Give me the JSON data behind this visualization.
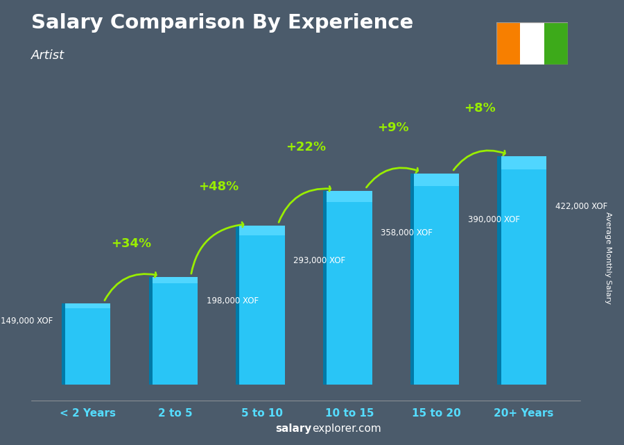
{
  "title": "Salary Comparison By Experience",
  "subtitle": "Artist",
  "categories": [
    "< 2 Years",
    "2 to 5",
    "5 to 10",
    "10 to 15",
    "15 to 20",
    "20+ Years"
  ],
  "values": [
    149000,
    198000,
    293000,
    358000,
    390000,
    422000
  ],
  "value_labels": [
    "149,000 XOF",
    "198,000 XOF",
    "293,000 XOF",
    "358,000 XOF",
    "390,000 XOF",
    "422,000 XOF"
  ],
  "pct_changes": [
    "+34%",
    "+48%",
    "+22%",
    "+9%",
    "+8%"
  ],
  "bar_color": "#29c5f6",
  "bar_color_light": "#55d8ff",
  "bar_color_dark": "#0099cc",
  "bar_shadow": "#007aa8",
  "bg_color": "#5a6a7a",
  "bg_overlay": "#4a5a6a",
  "title_color": "#FFFFFF",
  "subtitle_color": "#FFFFFF",
  "label_color": "#FFFFFF",
  "pct_color": "#99ee00",
  "cat_color": "#55ddff",
  "ylabel": "Average Monthly Salary",
  "footer_bold": "salary",
  "footer_normal": "explorer.com",
  "flag_colors": [
    "#F77F00",
    "#FFFFFF",
    "#3DAA1A"
  ],
  "ylim_max": 480000,
  "ylim_min": -30000
}
